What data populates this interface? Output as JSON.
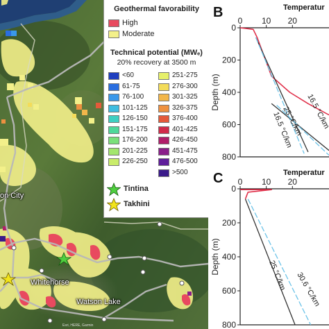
{
  "map": {
    "cities": [
      "Whitehorse",
      "Watson Lake",
      "on City"
    ],
    "attribution": "Esri, HERE, Garmin"
  },
  "legend": {
    "favorability_title": "Geothermal favorability",
    "favorability": [
      {
        "label": "High",
        "color": "#e84a5f"
      },
      {
        "label": "Moderate",
        "color": "#f3f08a"
      }
    ],
    "potential_title": "Technical potential (MWₑ)",
    "potential_subtitle": "20% recovery at 3500 m",
    "classes_left": [
      {
        "label": "<60",
        "color": "#1f3fbf"
      },
      {
        "label": "61-75",
        "color": "#2a6ee0"
      },
      {
        "label": "76-100",
        "color": "#3a98ea"
      },
      {
        "label": "101-125",
        "color": "#3fbde0"
      },
      {
        "label": "126-150",
        "color": "#3fcfc2"
      },
      {
        "label": "151-175",
        "color": "#4fd89a"
      },
      {
        "label": "176-200",
        "color": "#7ae07a"
      },
      {
        "label": "201-225",
        "color": "#a3e66e"
      },
      {
        "label": "226-250",
        "color": "#c9ec6a"
      }
    ],
    "classes_right": [
      {
        "label": "251-275",
        "color": "#e6f06a"
      },
      {
        "label": "276-300",
        "color": "#f3dc5a"
      },
      {
        "label": "301-325",
        "color": "#f2b64a"
      },
      {
        "label": "326-375",
        "color": "#ee9140"
      },
      {
        "label": "376-400",
        "color": "#e45a3a"
      },
      {
        "label": "401-425",
        "color": "#d12b4a"
      },
      {
        "label": "426-450",
        "color": "#b01e6a"
      },
      {
        "label": "451-475",
        "color": "#8a1f8a"
      },
      {
        "label": "476-500",
        "color": "#5f1e9a"
      },
      {
        "label": ">500",
        "color": "#3a1a8a"
      }
    ],
    "stars": [
      {
        "label": "Tintina",
        "color": "#4fcf3f"
      },
      {
        "label": "Takhini",
        "color": "#f2e41a"
      }
    ]
  },
  "chart_data": [
    {
      "panel": "B",
      "type": "line",
      "title": "Temperatur",
      "ylabel": "Depth (m)",
      "xlim": [
        0,
        34
      ],
      "ylim": [
        0,
        800
      ],
      "x_ticks": [
        0,
        10,
        20
      ],
      "y_ticks": [
        0,
        200,
        400,
        600,
        800
      ],
      "series": [
        {
          "role": "measured",
          "color": "#e0304a",
          "x": [
            0,
            5,
            6.5,
            12,
            19,
            26,
            34
          ],
          "y": [
            0,
            10,
            60,
            300,
            400,
            470,
            540
          ]
        },
        {
          "role": "gradient-a",
          "color": "#333333",
          "x": [
            6,
            26
          ],
          "y": [
            60,
            770
          ]
        },
        {
          "role": "gradient-b",
          "color": "#6cc3e8",
          "x": [
            6,
            24.5
          ],
          "y": [
            60,
            780
          ]
        },
        {
          "role": "gradient-c",
          "color": "#333333",
          "x": [
            12,
            34
          ],
          "y": [
            470,
            760
          ]
        },
        {
          "role": "gradient-d",
          "color": "#6cc3e8",
          "x": [
            14,
            34
          ],
          "y": [
            480,
            790
          ]
        }
      ],
      "annotations": [
        "25 °C/km",
        "16.5 °C/km",
        "16.5 °C/km"
      ]
    },
    {
      "panel": "C",
      "type": "line",
      "title": "Temperatur",
      "ylabel": "Depth (m)",
      "xlim": [
        0,
        34
      ],
      "ylim": [
        0,
        800
      ],
      "x_ticks": [
        0,
        10,
        20
      ],
      "y_ticks": [
        0,
        200,
        400,
        600,
        800
      ],
      "series": [
        {
          "role": "measured",
          "color": "#e0304a",
          "x": [
            0,
            12,
            3,
            2
          ],
          "y": [
            5,
            5,
            20,
            60
          ]
        },
        {
          "role": "gradient-a",
          "color": "#333333",
          "x": [
            2,
            21
          ],
          "y": [
            60,
            800
          ]
        },
        {
          "role": "gradient-b",
          "color": "#6cc3e8",
          "x": [
            3,
            27
          ],
          "y": [
            60,
            800
          ]
        }
      ],
      "annotations": [
        "25 °C/km",
        "30.6 °C/km"
      ]
    }
  ]
}
